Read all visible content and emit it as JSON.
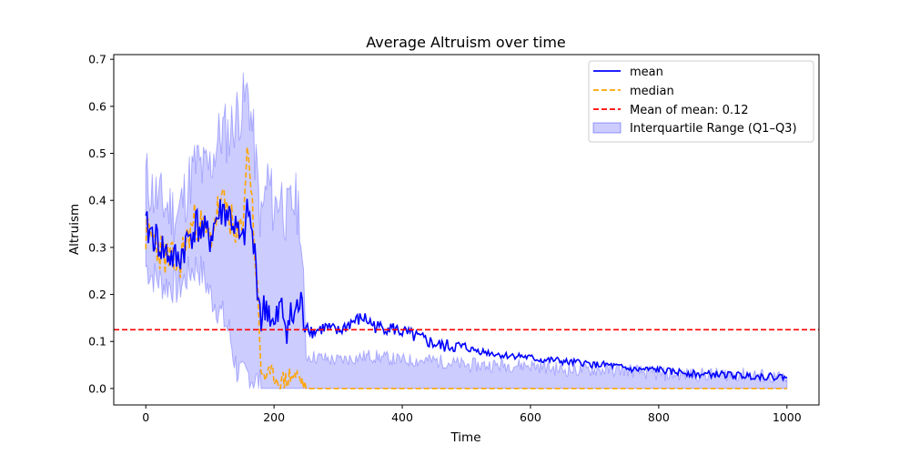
{
  "chart_data": {
    "type": "line",
    "title": "Average Altruism over time",
    "xlabel": "Time",
    "ylabel": "Altruism",
    "xlim": [
      -50,
      1050
    ],
    "ylim": [
      -0.035,
      0.71
    ],
    "xticks": [
      0,
      200,
      400,
      600,
      800,
      1000
    ],
    "yticks": [
      0.0,
      0.1,
      0.2,
      0.3,
      0.4,
      0.5,
      0.6,
      0.7
    ],
    "ytick_labels": [
      "0.0",
      "0.1",
      "0.2",
      "0.3",
      "0.4",
      "0.5",
      "0.6",
      "0.7"
    ],
    "grid": false,
    "legend_position": "top-right",
    "colors": {
      "mean": "#0000ff",
      "median": "#ffa500",
      "mean_of_mean": "#ff0000",
      "iqr": "#0000ff"
    },
    "reference_line": {
      "label": "Mean of mean: 0.12",
      "value": 0.125
    },
    "series": [
      {
        "name": "mean",
        "style": "solid",
        "x": [
          0,
          10,
          20,
          30,
          40,
          50,
          60,
          70,
          80,
          90,
          100,
          110,
          120,
          130,
          140,
          150,
          160,
          170,
          180,
          190,
          200,
          210,
          220,
          230,
          240,
          250,
          260,
          280,
          300,
          320,
          340,
          360,
          380,
          400,
          420,
          440,
          460,
          480,
          500,
          520,
          540,
          560,
          580,
          600,
          620,
          640,
          660,
          680,
          700,
          720,
          740,
          760,
          780,
          800,
          820,
          840,
          860,
          880,
          900,
          920,
          940,
          960,
          980,
          1000
        ],
        "y": [
          0.34,
          0.33,
          0.31,
          0.29,
          0.28,
          0.27,
          0.3,
          0.33,
          0.35,
          0.33,
          0.32,
          0.36,
          0.38,
          0.37,
          0.34,
          0.3,
          0.38,
          0.28,
          0.15,
          0.18,
          0.12,
          0.17,
          0.14,
          0.15,
          0.18,
          0.14,
          0.12,
          0.13,
          0.12,
          0.14,
          0.15,
          0.13,
          0.13,
          0.12,
          0.11,
          0.1,
          0.09,
          0.09,
          0.085,
          0.08,
          0.075,
          0.07,
          0.07,
          0.065,
          0.06,
          0.06,
          0.055,
          0.055,
          0.05,
          0.05,
          0.045,
          0.04,
          0.04,
          0.04,
          0.035,
          0.035,
          0.03,
          0.03,
          0.03,
          0.028,
          0.027,
          0.026,
          0.025,
          0.025
        ]
      },
      {
        "name": "median",
        "style": "dashed",
        "x": [
          0,
          10,
          20,
          30,
          40,
          50,
          60,
          70,
          80,
          90,
          100,
          110,
          120,
          130,
          140,
          150,
          160,
          170,
          180,
          190,
          200,
          210,
          220,
          230,
          240,
          250,
          300,
          400,
          500,
          600,
          700,
          800,
          900,
          1000
        ],
        "y": [
          0.33,
          0.32,
          0.3,
          0.28,
          0.27,
          0.26,
          0.3,
          0.34,
          0.36,
          0.33,
          0.32,
          0.37,
          0.39,
          0.38,
          0.3,
          0.35,
          0.52,
          0.3,
          0.04,
          0.02,
          0.03,
          0.01,
          0.02,
          0.03,
          0.02,
          0.0,
          0.0,
          0.0,
          0.0,
          0.0,
          0.0,
          0.0,
          0.0,
          0.0
        ]
      },
      {
        "name": "Interquartile Range (Q1–Q3)",
        "style": "fill",
        "x": [
          0,
          10,
          20,
          30,
          40,
          50,
          60,
          70,
          80,
          90,
          100,
          110,
          120,
          130,
          140,
          150,
          160,
          170,
          180,
          190,
          200,
          210,
          220,
          230,
          240,
          250,
          300,
          350,
          400,
          450,
          500,
          550,
          600,
          650,
          700,
          750,
          800,
          850,
          900,
          950,
          1000
        ],
        "q1": [
          0.26,
          0.24,
          0.23,
          0.22,
          0.22,
          0.21,
          0.23,
          0.25,
          0.26,
          0.24,
          0.2,
          0.18,
          0.15,
          0.12,
          0.05,
          0.02,
          0.03,
          0.02,
          0.0,
          0.0,
          0.0,
          0.0,
          0.0,
          0.0,
          0.0,
          0.0,
          0.0,
          0.0,
          0.0,
          0.0,
          0.0,
          0.0,
          0.0,
          0.0,
          0.0,
          0.0,
          0.0,
          0.0,
          0.0,
          0.0,
          0.0
        ],
        "q3": [
          0.45,
          0.42,
          0.4,
          0.39,
          0.38,
          0.37,
          0.41,
          0.45,
          0.48,
          0.46,
          0.47,
          0.52,
          0.55,
          0.54,
          0.58,
          0.6,
          0.63,
          0.5,
          0.35,
          0.45,
          0.38,
          0.42,
          0.36,
          0.4,
          0.38,
          0.07,
          0.06,
          0.07,
          0.06,
          0.06,
          0.05,
          0.05,
          0.05,
          0.04,
          0.04,
          0.04,
          0.03,
          0.03,
          0.03,
          0.03,
          0.02
        ]
      }
    ],
    "legend": [
      "mean",
      "median",
      "Mean of mean: 0.12",
      "Interquartile Range (Q1–Q3)"
    ]
  }
}
